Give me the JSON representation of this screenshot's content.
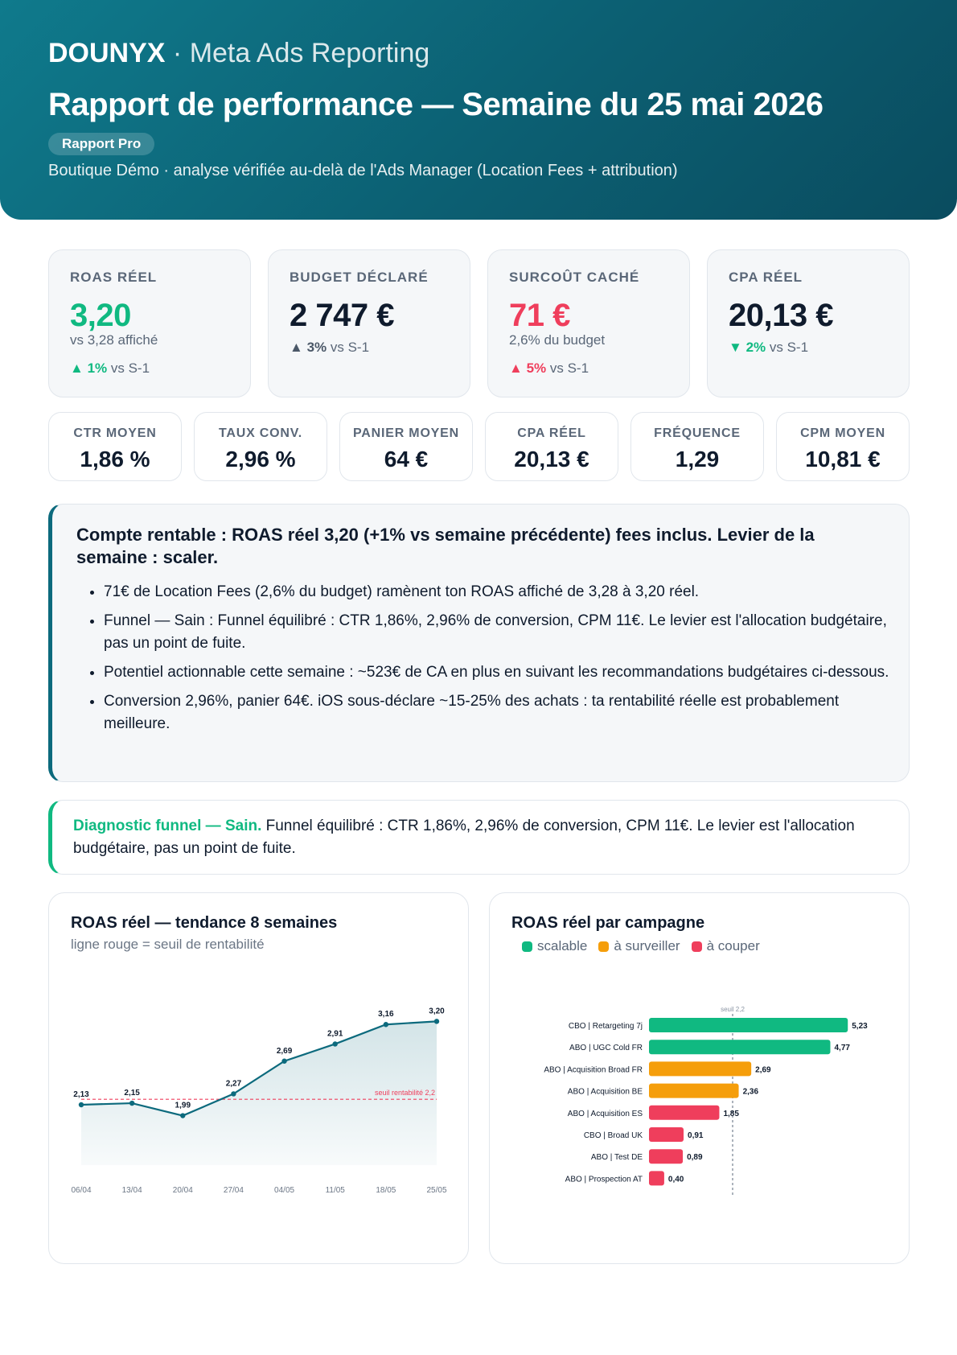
{
  "header": {
    "brand": "DOUNYX",
    "brand_suffix": "· Meta Ads Reporting",
    "title": "Rapport de performance — Semaine du 25 mai 2026",
    "pill": "Rapport Pro",
    "subtitle": "Boutique Démo · analyse vérifiée au-delà de l'Ads Manager (Location Fees + attribution)"
  },
  "kpis": [
    {
      "label": "ROAS RÉEL",
      "value": "3,20",
      "sub": "vs 3,28 affiché",
      "arrow": "▲",
      "delta": "1%",
      "delta_suffix": "vs S-1"
    },
    {
      "label": "BUDGET DÉCLARÉ",
      "value": "2 747 €",
      "sub": "",
      "arrow": "▲",
      "delta": "3%",
      "delta_suffix": "vs S-1"
    },
    {
      "label": "SURCOÛT CACHÉ",
      "value": "71 €",
      "sub": "2,6% du budget",
      "arrow": "▲",
      "delta": "5%",
      "delta_suffix": "vs S-1"
    },
    {
      "label": "CPA RÉEL",
      "value": "20,13 €",
      "sub": "",
      "arrow": "▼",
      "delta": "2%",
      "delta_suffix": "vs S-1"
    }
  ],
  "minis": [
    {
      "label": "CTR MOYEN",
      "value": "1,86 %"
    },
    {
      "label": "TAUX CONV.",
      "value": "2,96 %"
    },
    {
      "label": "PANIER MOYEN",
      "value": "64 €"
    },
    {
      "label": "CPA RÉEL",
      "value": "20,13 €"
    },
    {
      "label": "FRÉQUENCE",
      "value": "1,29"
    },
    {
      "label": "CPM MOYEN",
      "value": "10,81 €"
    }
  ],
  "summary": {
    "heading": "Compte rentable : ROAS réel 3,20 (+1% vs semaine précédente) fees inclus. Levier de la semaine : scaler.",
    "bullets": [
      "71€ de Location Fees (2,6% du budget) ramènent ton ROAS affiché de 3,28 à 3,20 réel.",
      "Funnel — Sain : Funnel équilibré : CTR 1,86%, 2,96% de conversion, CPM 11€. Le levier est l'allocation budgétaire, pas un point de fuite.",
      "Potentiel actionnable cette semaine : ~523€ de CA en plus en suivant les recommandations budgétaires ci-dessous.",
      "Conversion 2,96%, panier 64€. iOS sous-déclare ~15-25% des achats : ta rentabilité réelle est probablement meilleure."
    ]
  },
  "diagnostic": {
    "label": "Diagnostic funnel — Sain.",
    "text": " Funnel équilibré : CTR 1,86%, 2,96% de conversion, CPM 11€. Le levier est l'allocation budgétaire, pas un point de fuite."
  },
  "colors": {
    "header": "#0c5f72",
    "accent": "#0c6a7d",
    "green": "#10b981",
    "orange": "#f59e0b",
    "red": "#ef3e5c"
  },
  "chart_data": [
    {
      "type": "area",
      "title": "ROAS réel — tendance 8 semaines",
      "subtitle": "ligne rouge = seuil de rentabilité",
      "x": [
        "06/04",
        "13/04",
        "20/04",
        "27/04",
        "04/05",
        "11/05",
        "18/05",
        "25/05"
      ],
      "values": [
        2.13,
        2.15,
        1.99,
        2.27,
        2.69,
        2.91,
        3.16,
        3.2
      ],
      "labels": [
        "2,13",
        "2,15",
        "1,99",
        "2,27",
        "2,69",
        "2,91",
        "3,16",
        "3,20"
      ],
      "threshold": 2.2,
      "threshold_label": "seuil rentabilité 2,2",
      "ylim": [
        1.5,
        3.4
      ],
      "grid": false
    },
    {
      "type": "bar",
      "orientation": "horizontal",
      "title": "ROAS réel par campagne",
      "legend": [
        {
          "name": "scalable",
          "color": "#10b981"
        },
        {
          "name": "à surveiller",
          "color": "#f59e0b"
        },
        {
          "name": "à couper",
          "color": "#ef3e5c"
        }
      ],
      "legend_position": "top-left",
      "categories": [
        "CBO | Retargeting 7j",
        "ABO | UGC Cold FR",
        "ABO | Acquisition Broad FR",
        "ABO | Acquisition BE",
        "ABO | Acquisition ES",
        "CBO | Broad UK",
        "ABO | Test DE",
        "ABO | Prospection AT"
      ],
      "values": [
        5.23,
        4.77,
        2.69,
        2.36,
        1.85,
        0.91,
        0.89,
        0.4
      ],
      "labels": [
        "5,23",
        "4,77",
        "2,69",
        "2,36",
        "1,85",
        "0,91",
        "0,89",
        "0,40"
      ],
      "status": [
        "scalable",
        "scalable",
        "à surveiller",
        "à surveiller",
        "à couper",
        "à couper",
        "à couper",
        "à couper"
      ],
      "threshold": 2.2,
      "threshold_label": "seuil 2,2",
      "xlim": [
        0,
        5.5
      ]
    }
  ]
}
